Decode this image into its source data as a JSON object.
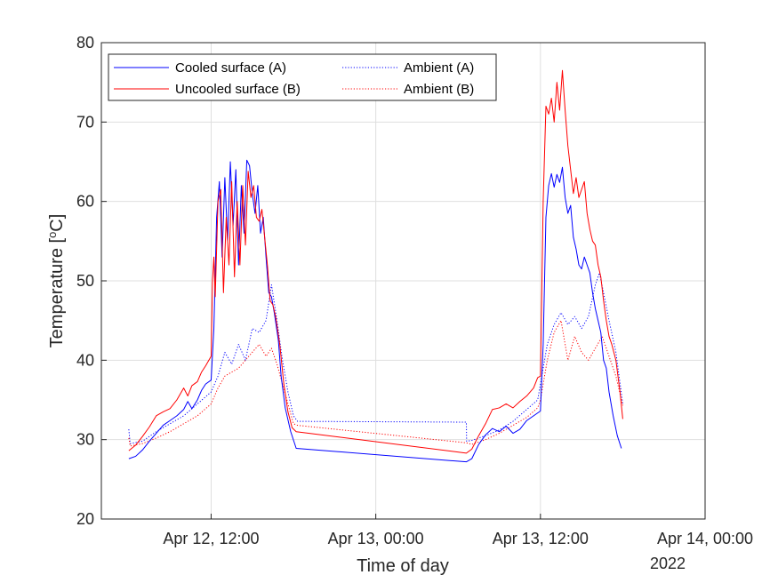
{
  "chart_data": {
    "type": "line",
    "title": "",
    "xlabel": "Time of day",
    "ylabel_parts": [
      "Temperature [",
      "o",
      "C]"
    ],
    "year_label": "2022",
    "x_unit": "hours since Apr 12, 00:00",
    "xlim": [
      4,
      48
    ],
    "ylim": [
      20,
      80
    ],
    "yticks": [
      20,
      30,
      40,
      50,
      60,
      70,
      80
    ],
    "xticks": [
      {
        "x": 12,
        "label": "Apr 12, 12:00"
      },
      {
        "x": 24,
        "label": "Apr 13, 00:00"
      },
      {
        "x": 36,
        "label": "Apr 13, 12:00"
      },
      {
        "x": 48,
        "label": "Apr 14, 00:00"
      }
    ],
    "grid": true,
    "legend_position": "top-left",
    "series": [
      {
        "name": "Cooled surface (A)",
        "color": "#0000ff",
        "style": "solid",
        "points": [
          [
            6,
            27.6
          ],
          [
            6.5,
            27.9
          ],
          [
            7,
            28.7
          ],
          [
            7.5,
            29.8
          ],
          [
            8,
            30.8
          ],
          [
            8.5,
            31.8
          ],
          [
            9,
            32.4
          ],
          [
            9.5,
            33.0
          ],
          [
            10,
            33.8
          ],
          [
            10.3,
            34.8
          ],
          [
            10.6,
            33.9
          ],
          [
            11,
            35.0
          ],
          [
            11.3,
            36.2
          ],
          [
            11.6,
            37.0
          ],
          [
            12,
            37.5
          ],
          [
            12.2,
            44.0
          ],
          [
            12.4,
            58.0
          ],
          [
            12.6,
            62.5
          ],
          [
            12.8,
            53.0
          ],
          [
            13.0,
            63.0
          ],
          [
            13.2,
            55.0
          ],
          [
            13.4,
            65.0
          ],
          [
            13.6,
            57.0
          ],
          [
            13.8,
            64.0
          ],
          [
            14.0,
            52.0
          ],
          [
            14.2,
            62.0
          ],
          [
            14.4,
            56.0
          ],
          [
            14.6,
            65.2
          ],
          [
            14.8,
            64.5
          ],
          [
            15.0,
            61.0
          ],
          [
            15.2,
            58.5
          ],
          [
            15.4,
            62.0
          ],
          [
            15.6,
            56.0
          ],
          [
            15.8,
            58.0
          ],
          [
            16.0,
            53.0
          ],
          [
            16.2,
            48.5
          ],
          [
            16.4,
            48.0
          ],
          [
            16.6,
            46.0
          ],
          [
            16.9,
            42.5
          ],
          [
            17.1,
            38.0
          ],
          [
            17.4,
            34.0
          ],
          [
            17.8,
            31.0
          ],
          [
            18.2,
            28.9
          ],
          [
            30.6,
            27.2
          ],
          [
            31,
            27.6
          ],
          [
            31.5,
            29.4
          ],
          [
            32,
            30.6
          ],
          [
            32.5,
            31.4
          ],
          [
            33,
            31.0
          ],
          [
            33.5,
            31.7
          ],
          [
            34,
            30.8
          ],
          [
            34.5,
            31.3
          ],
          [
            35,
            32.4
          ],
          [
            35.5,
            33.0
          ],
          [
            36,
            33.6
          ],
          [
            36.2,
            42.0
          ],
          [
            36.4,
            58.0
          ],
          [
            36.6,
            62.0
          ],
          [
            36.8,
            63.5
          ],
          [
            37.0,
            61.8
          ],
          [
            37.2,
            63.4
          ],
          [
            37.4,
            62.4
          ],
          [
            37.6,
            64.3
          ],
          [
            37.8,
            60.5
          ],
          [
            38.0,
            58.5
          ],
          [
            38.2,
            59.5
          ],
          [
            38.4,
            55.5
          ],
          [
            38.6,
            54.0
          ],
          [
            38.8,
            52.0
          ],
          [
            39.0,
            51.5
          ],
          [
            39.2,
            53.0
          ],
          [
            39.4,
            52.0
          ],
          [
            39.6,
            51.0
          ],
          [
            39.8,
            48.5
          ],
          [
            40.0,
            46.5
          ],
          [
            40.2,
            45.0
          ],
          [
            40.4,
            43.5
          ],
          [
            40.6,
            40.0
          ],
          [
            40.8,
            39.0
          ],
          [
            41.0,
            36.0
          ],
          [
            41.3,
            33.0
          ],
          [
            41.6,
            30.5
          ],
          [
            41.9,
            28.9
          ]
        ]
      },
      {
        "name": "Uncooled surface (B)",
        "color": "#ff0000",
        "style": "solid",
        "points": [
          [
            6,
            28.6
          ],
          [
            6.5,
            29.3
          ],
          [
            7,
            30.4
          ],
          [
            7.5,
            31.6
          ],
          [
            8,
            33.0
          ],
          [
            8.5,
            33.5
          ],
          [
            9,
            33.9
          ],
          [
            9.5,
            35.0
          ],
          [
            10,
            36.5
          ],
          [
            10.3,
            35.5
          ],
          [
            10.6,
            36.8
          ],
          [
            11,
            37.3
          ],
          [
            11.3,
            38.5
          ],
          [
            11.6,
            39.3
          ],
          [
            12,
            40.5
          ],
          [
            12.1,
            50.0
          ],
          [
            12.2,
            53.0
          ],
          [
            12.3,
            48.0
          ],
          [
            12.5,
            60.0
          ],
          [
            12.7,
            61.5
          ],
          [
            12.9,
            48.5
          ],
          [
            13.1,
            58.0
          ],
          [
            13.3,
            52.0
          ],
          [
            13.5,
            62.5
          ],
          [
            13.7,
            50.5
          ],
          [
            13.9,
            60.0
          ],
          [
            14.1,
            52.0
          ],
          [
            14.3,
            62.0
          ],
          [
            14.5,
            54.5
          ],
          [
            14.7,
            63.8
          ],
          [
            14.9,
            60.5
          ],
          [
            15.1,
            62.0
          ],
          [
            15.3,
            58.0
          ],
          [
            15.5,
            57.5
          ],
          [
            15.7,
            59.0
          ],
          [
            15.9,
            55.5
          ],
          [
            16.1,
            52.0
          ],
          [
            16.3,
            47.5
          ],
          [
            16.5,
            47.0
          ],
          [
            16.7,
            45.5
          ],
          [
            17.0,
            42.0
          ],
          [
            17.3,
            37.0
          ],
          [
            17.6,
            33.5
          ],
          [
            17.9,
            31.5
          ],
          [
            18.2,
            31.0
          ],
          [
            30.6,
            28.3
          ],
          [
            31,
            28.8
          ],
          [
            31.5,
            30.5
          ],
          [
            32,
            32.0
          ],
          [
            32.5,
            33.8
          ],
          [
            33,
            34.0
          ],
          [
            33.5,
            34.5
          ],
          [
            34,
            34.0
          ],
          [
            34.5,
            34.8
          ],
          [
            35,
            35.5
          ],
          [
            35.5,
            36.5
          ],
          [
            35.8,
            37.8
          ],
          [
            36.0,
            38.0
          ],
          [
            36.2,
            60.0
          ],
          [
            36.4,
            72.0
          ],
          [
            36.6,
            71.0
          ],
          [
            36.8,
            73.0
          ],
          [
            37.0,
            70.0
          ],
          [
            37.2,
            75.0
          ],
          [
            37.4,
            71.5
          ],
          [
            37.6,
            76.5
          ],
          [
            37.8,
            71.5
          ],
          [
            38.0,
            67.0
          ],
          [
            38.2,
            64.0
          ],
          [
            38.4,
            61.0
          ],
          [
            38.6,
            63.0
          ],
          [
            38.8,
            60.5
          ],
          [
            39.0,
            61.5
          ],
          [
            39.2,
            62.5
          ],
          [
            39.4,
            58.5
          ],
          [
            39.6,
            56.5
          ],
          [
            39.8,
            55.0
          ],
          [
            40.0,
            54.5
          ],
          [
            40.2,
            52.0
          ],
          [
            40.4,
            50.5
          ],
          [
            40.6,
            47.5
          ],
          [
            40.8,
            45.0
          ],
          [
            41.0,
            43.0
          ],
          [
            41.2,
            42.0
          ],
          [
            41.5,
            40.0
          ],
          [
            41.8,
            36.0
          ],
          [
            42.0,
            32.6
          ]
        ]
      },
      {
        "name": "Ambient (A)",
        "color": "#0000ff",
        "style": "dotted",
        "points": [
          [
            6,
            31.3
          ],
          [
            6.1,
            29.5
          ],
          [
            7,
            29.8
          ],
          [
            8,
            31.0
          ],
          [
            9,
            32.0
          ],
          [
            10,
            33.0
          ],
          [
            11,
            34.5
          ],
          [
            12,
            36.0
          ],
          [
            12.5,
            38.0
          ],
          [
            13,
            41.0
          ],
          [
            13.5,
            39.5
          ],
          [
            14,
            42.0
          ],
          [
            14.5,
            40.0
          ],
          [
            15,
            44.0
          ],
          [
            15.5,
            43.5
          ],
          [
            16,
            45.0
          ],
          [
            16.4,
            49.5
          ],
          [
            16.8,
            45.0
          ],
          [
            17.2,
            40.0
          ],
          [
            17.6,
            36.0
          ],
          [
            18.0,
            33.0
          ],
          [
            18.3,
            32.3
          ],
          [
            30.6,
            32.2
          ],
          [
            30.62,
            29.8
          ],
          [
            31,
            29.9
          ],
          [
            32,
            30.5
          ],
          [
            33,
            31.2
          ],
          [
            34,
            32.3
          ],
          [
            35,
            33.8
          ],
          [
            35.8,
            35.0
          ],
          [
            36,
            37.0
          ],
          [
            36.5,
            42.0
          ],
          [
            37,
            44.5
          ],
          [
            37.5,
            46.0
          ],
          [
            38,
            44.5
          ],
          [
            38.5,
            45.5
          ],
          [
            39,
            44.0
          ],
          [
            39.5,
            45.5
          ],
          [
            40,
            49.5
          ],
          [
            40.3,
            51.0
          ],
          [
            40.6,
            48.5
          ],
          [
            41,
            45.0
          ],
          [
            41.5,
            41.0
          ],
          [
            42,
            34.5
          ]
        ]
      },
      {
        "name": "Ambient (B)",
        "color": "#ff0000",
        "style": "dotted",
        "points": [
          [
            6,
            30.2
          ],
          [
            6.1,
            29.2
          ],
          [
            7,
            29.5
          ],
          [
            8,
            30.2
          ],
          [
            9,
            31.0
          ],
          [
            10,
            32.0
          ],
          [
            11,
            33.0
          ],
          [
            12,
            34.5
          ],
          [
            12.5,
            36.5
          ],
          [
            13,
            38.0
          ],
          [
            13.5,
            38.5
          ],
          [
            14,
            39.0
          ],
          [
            14.5,
            40.0
          ],
          [
            15,
            41.0
          ],
          [
            15.5,
            42.0
          ],
          [
            16,
            40.5
          ],
          [
            16.4,
            41.5
          ],
          [
            16.8,
            39.5
          ],
          [
            17.2,
            37.0
          ],
          [
            17.6,
            34.5
          ],
          [
            18.0,
            32.0
          ],
          [
            18.3,
            31.8
          ],
          [
            30.6,
            29.6
          ],
          [
            31,
            29.4
          ],
          [
            32,
            30.0
          ],
          [
            33,
            30.8
          ],
          [
            34,
            31.8
          ],
          [
            35,
            32.8
          ],
          [
            35.8,
            34.0
          ],
          [
            36,
            35.0
          ],
          [
            36.5,
            40.0
          ],
          [
            37,
            43.5
          ],
          [
            37.5,
            45.0
          ],
          [
            38,
            40.0
          ],
          [
            38.5,
            43.0
          ],
          [
            39,
            41.0
          ],
          [
            39.5,
            40.0
          ],
          [
            40,
            41.5
          ],
          [
            40.5,
            43.0
          ],
          [
            41,
            40.5
          ],
          [
            41.5,
            38.0
          ],
          [
            42,
            34.3
          ]
        ]
      }
    ]
  }
}
